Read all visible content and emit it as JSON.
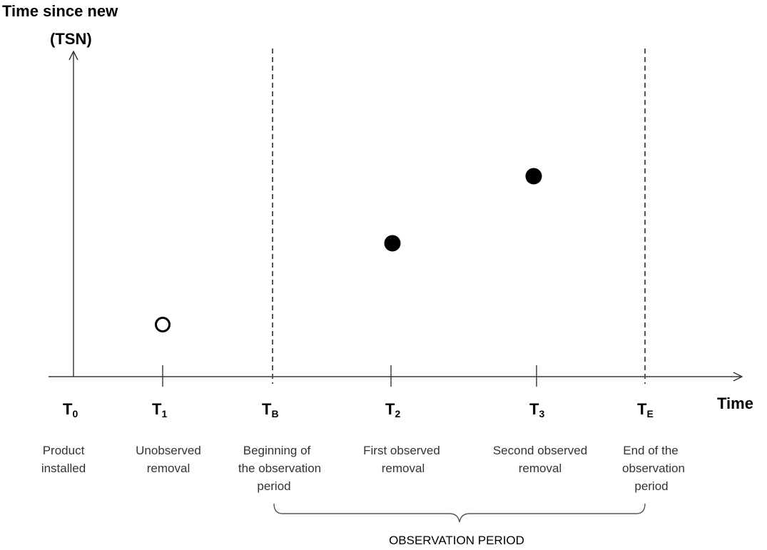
{
  "y_axis_title": [
    "Time since new",
    "(TSN)"
  ],
  "x_axis_title": "Time",
  "events": [
    {
      "main": "T",
      "sub": "0",
      "desc": [
        "Product",
        "installed"
      ]
    },
    {
      "main": "T",
      "sub": "1",
      "desc": [
        "Unobserved",
        "removal"
      ]
    },
    {
      "main": "T",
      "sub": "B",
      "desc": [
        "Beginning of",
        "the observation",
        "period"
      ]
    },
    {
      "main": "T",
      "sub": "2",
      "desc": [
        "First observed",
        "removal"
      ]
    },
    {
      "main": "T",
      "sub": "3",
      "desc": [
        "Second observed",
        "removal"
      ]
    },
    {
      "main": "T",
      "sub": "E",
      "desc": [
        "End of the",
        "observation",
        "period"
      ]
    }
  ],
  "period_label": "OBSERVATION PERIOD",
  "points": [
    {
      "event": "T1",
      "filled": false
    },
    {
      "event": "T2",
      "filled": true
    },
    {
      "event": "T3",
      "filled": true
    }
  ]
}
